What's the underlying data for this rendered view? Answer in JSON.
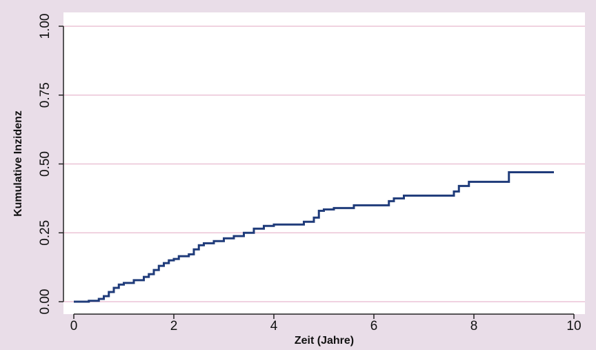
{
  "chart_data": {
    "type": "line",
    "step": "post",
    "y_label": "Kumulative Inzidenz",
    "x_label": "Zeit (Jahre)",
    "x": [
      0,
      0.3,
      0.5,
      0.6,
      0.7,
      0.8,
      0.9,
      1.0,
      1.2,
      1.4,
      1.5,
      1.6,
      1.7,
      1.8,
      1.9,
      2.0,
      2.1,
      2.3,
      2.4,
      2.5,
      2.6,
      2.8,
      3.0,
      3.2,
      3.4,
      3.6,
      3.8,
      4.0,
      4.4,
      4.6,
      4.8,
      4.9,
      5.0,
      5.2,
      5.6,
      6.3,
      6.4,
      6.6,
      7.6,
      7.7,
      7.9,
      8.7,
      9.6
    ],
    "series": [
      {
        "name": "Kumulative Inzidenz",
        "color": "#1f3b7a",
        "values": [
          0,
          0.003,
          0.01,
          0.02,
          0.035,
          0.05,
          0.062,
          0.068,
          0.078,
          0.09,
          0.1,
          0.115,
          0.13,
          0.14,
          0.15,
          0.155,
          0.165,
          0.172,
          0.19,
          0.205,
          0.212,
          0.22,
          0.23,
          0.238,
          0.25,
          0.265,
          0.275,
          0.28,
          0.28,
          0.29,
          0.305,
          0.33,
          0.335,
          0.34,
          0.35,
          0.365,
          0.375,
          0.385,
          0.4,
          0.42,
          0.435,
          0.47,
          0.47
        ]
      }
    ],
    "xlim": [
      0,
      10
    ],
    "xticks": [
      0,
      2,
      4,
      6,
      8,
      10
    ],
    "ylim": [
      0,
      1
    ],
    "yticks": [
      {
        "value": 0,
        "label": "0.00"
      },
      0.25,
      {
        "value": 0.5,
        "label": "0.50"
      },
      0.75,
      {
        "value": 1,
        "label": "1.00"
      }
    ],
    "grid": true,
    "grid_color": "#ebc3d6"
  }
}
